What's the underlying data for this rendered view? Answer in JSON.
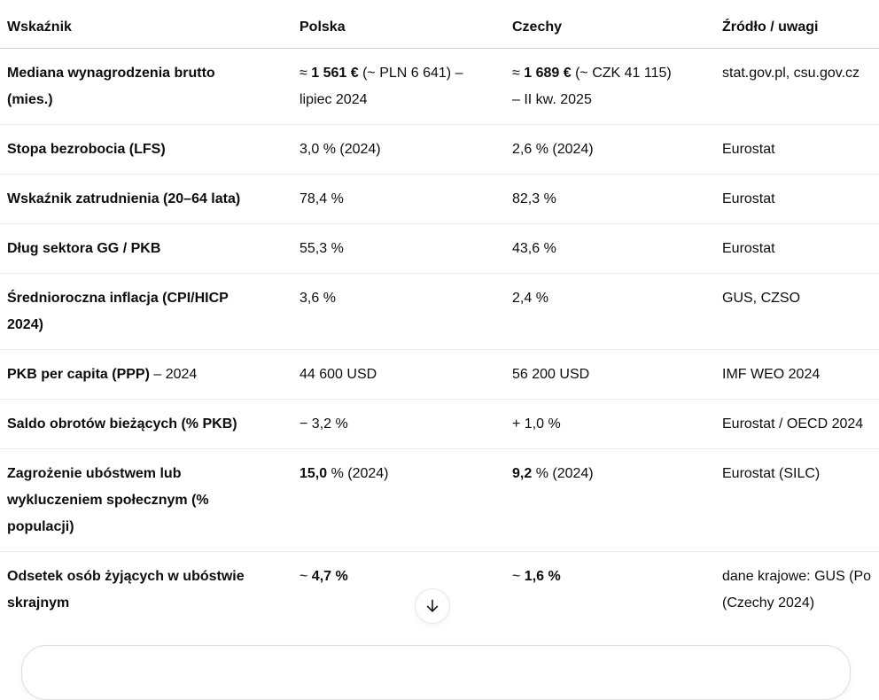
{
  "colors": {
    "background": "#ffffff",
    "text": "#0d0d0d",
    "header_divider": "#cfcfcf",
    "row_divider": "#ebebeb",
    "scroll_button_border": "#e8e8e8",
    "composer_border": "#dcdcdc"
  },
  "table": {
    "headers": [
      "Wskaźnik",
      "Polska",
      "Czechy",
      "Źródło / uwagi"
    ],
    "rows": [
      {
        "cells": [
          [
            {
              "b": true,
              "t": "Mediana wynagrodzenia brutto\n(mies.)"
            }
          ],
          [
            {
              "t": "≈ "
            },
            {
              "b": true,
              "t": "1 561 €"
            },
            {
              "t": " (~ PLN 6 641) –\nlipiec 2024"
            }
          ],
          [
            {
              "t": "≈ "
            },
            {
              "b": true,
              "t": "1 689 €"
            },
            {
              "t": " (~ CZK 41 115)\n– II kw. 2025"
            }
          ],
          [
            {
              "t": "stat.gov.pl, csu.gov.cz"
            }
          ]
        ]
      },
      {
        "cells": [
          [
            {
              "b": true,
              "t": "Stopa bezrobocia (LFS)"
            }
          ],
          [
            {
              "t": "3,0 % (2024)"
            }
          ],
          [
            {
              "t": "2,6 % (2024)"
            }
          ],
          [
            {
              "t": "Eurostat"
            }
          ]
        ]
      },
      {
        "cells": [
          [
            {
              "b": true,
              "t": "Wskaźnik zatrudnienia (20–64 lata)"
            }
          ],
          [
            {
              "t": "78,4 %"
            }
          ],
          [
            {
              "t": "82,3 %"
            }
          ],
          [
            {
              "t": "Eurostat"
            }
          ]
        ]
      },
      {
        "cells": [
          [
            {
              "b": true,
              "t": "Dług sektora GG / PKB"
            }
          ],
          [
            {
              "t": "55,3 %"
            }
          ],
          [
            {
              "t": "43,6 %"
            }
          ],
          [
            {
              "t": "Eurostat"
            }
          ]
        ]
      },
      {
        "cells": [
          [
            {
              "b": true,
              "t": "Średnioroczna inflacja (CPI/HICP\n2024)"
            }
          ],
          [
            {
              "t": "3,6 %"
            }
          ],
          [
            {
              "t": "2,4 %"
            }
          ],
          [
            {
              "t": "GUS, CZSO"
            }
          ]
        ]
      },
      {
        "cells": [
          [
            {
              "b": true,
              "t": "PKB per capita (PPP)"
            },
            {
              "t": " – 2024"
            }
          ],
          [
            {
              "t": "44 600 USD"
            }
          ],
          [
            {
              "t": "56 200 USD"
            }
          ],
          [
            {
              "t": "IMF WEO 2024"
            }
          ]
        ]
      },
      {
        "cells": [
          [
            {
              "b": true,
              "t": "Saldo obrotów bieżących (% PKB)"
            }
          ],
          [
            {
              "t": "− 3,2 %"
            }
          ],
          [
            {
              "t": "+ 1,0 %"
            }
          ],
          [
            {
              "t": "Eurostat / OECD 2024"
            }
          ]
        ]
      },
      {
        "cells": [
          [
            {
              "b": true,
              "t": "Zagrożenie ubóstwem lub\nwykluczeniem społecznym (%\npopulacji)"
            }
          ],
          [
            {
              "b": true,
              "t": "15,0"
            },
            {
              "t": " % (2024)"
            }
          ],
          [
            {
              "b": true,
              "t": "9,2"
            },
            {
              "t": " % (2024)"
            }
          ],
          [
            {
              "t": "Eurostat (SILC)"
            }
          ]
        ]
      },
      {
        "cells": [
          [
            {
              "b": true,
              "t": "Odsetek osób żyjących w ubóstwie\nskrajnym"
            }
          ],
          [
            {
              "t": "~ "
            },
            {
              "b": true,
              "t": "4,7 %"
            }
          ],
          [
            {
              "t": "~ "
            },
            {
              "b": true,
              "t": "1,6 %"
            }
          ],
          [
            {
              "t": "dane krajowe: GUS (Po\n(Czechy 2024)"
            }
          ]
        ]
      }
    ]
  },
  "scroll_button": {
    "icon": "arrow-down"
  }
}
